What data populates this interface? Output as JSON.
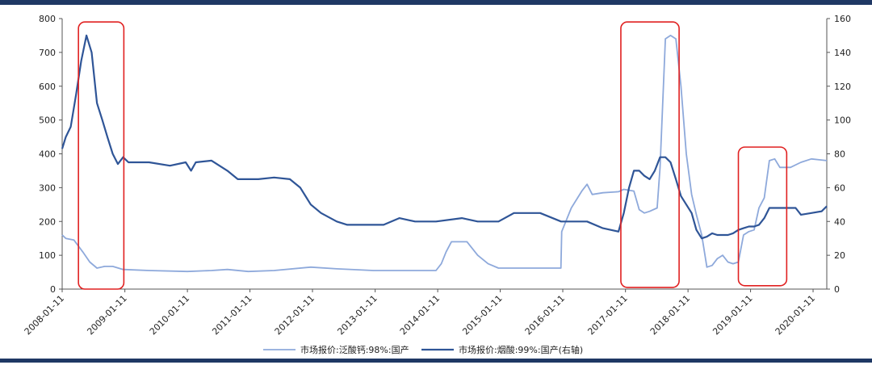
{
  "chart_data": {
    "type": "line",
    "title": "",
    "xlabel": "",
    "ylabel": "",
    "x_tick_labels": [
      "2008-01-11",
      "2009-01-11",
      "2010-01-11",
      "2011-01-11",
      "2012-01-11",
      "2013-01-11",
      "2014-01-11",
      "2015-01-11",
      "2016-01-11",
      "2017-01-11",
      "2018-01-11",
      "2019-01-11",
      "2020-01-11"
    ],
    "xlim": [
      "2008-01-11",
      "2020-03-31"
    ],
    "y_left": {
      "ticks": [
        "0",
        "100",
        "200",
        "300",
        "400",
        "500",
        "600",
        "700",
        "800"
      ],
      "ylim": [
        0,
        800
      ]
    },
    "y_right": {
      "ticks": [
        "0",
        "20",
        "40",
        "60",
        "80",
        "100",
        "120",
        "140",
        "160"
      ],
      "ylim": [
        0,
        160
      ]
    },
    "grid": false,
    "legend_position": "bottom",
    "colors": {
      "series_light": "#8ea9db",
      "series_dark": "#2f5597",
      "highlight_box": "#e02020",
      "rule": "#1f3864"
    },
    "highlight_ranges": [
      {
        "x": [
          "2008-04-15",
          "2009-01-05"
        ],
        "y_right": [
          0,
          158
        ]
      },
      {
        "x": [
          "2016-12-15",
          "2017-11-20"
        ],
        "y_right": [
          1,
          158
        ]
      },
      {
        "x": [
          "2018-11-01",
          "2019-08-10"
        ],
        "y_right": [
          2,
          84
        ]
      }
    ],
    "series": [
      {
        "name": "市场报价:泛酸钙:98%:国产",
        "axis": "left",
        "color": "#8ea9db",
        "points": [
          [
            "2008-01-11",
            160
          ],
          [
            "2008-02-01",
            150
          ],
          [
            "2008-03-20",
            145
          ],
          [
            "2008-05-10",
            110
          ],
          [
            "2008-06-20",
            80
          ],
          [
            "2008-08-01",
            62
          ],
          [
            "2008-09-15",
            67
          ],
          [
            "2008-11-01",
            67
          ],
          [
            "2009-01-01",
            58
          ],
          [
            "2009-06-01",
            55
          ],
          [
            "2010-01-11",
            52
          ],
          [
            "2010-06-01",
            55
          ],
          [
            "2010-09-01",
            58
          ],
          [
            "2011-01-01",
            52
          ],
          [
            "2011-06-01",
            55
          ],
          [
            "2012-01-01",
            65
          ],
          [
            "2012-06-01",
            60
          ],
          [
            "2013-01-01",
            55
          ],
          [
            "2013-06-01",
            55
          ],
          [
            "2014-01-01",
            55
          ],
          [
            "2014-02-01",
            75
          ],
          [
            "2014-03-01",
            110
          ],
          [
            "2014-04-01",
            140
          ],
          [
            "2014-07-01",
            140
          ],
          [
            "2014-09-01",
            100
          ],
          [
            "2014-11-01",
            75
          ],
          [
            "2015-01-01",
            62
          ],
          [
            "2015-06-01",
            62
          ],
          [
            "2015-12-31",
            62
          ],
          [
            "2016-01-05",
            170
          ],
          [
            "2016-03-01",
            240
          ],
          [
            "2016-05-01",
            290
          ],
          [
            "2016-06-01",
            310
          ],
          [
            "2016-07-01",
            280
          ],
          [
            "2016-09-01",
            285
          ],
          [
            "2016-12-01",
            288
          ],
          [
            "2017-01-01",
            295
          ],
          [
            "2017-03-01",
            290
          ],
          [
            "2017-04-01",
            235
          ],
          [
            "2017-05-01",
            225
          ],
          [
            "2017-06-01",
            230
          ],
          [
            "2017-07-15",
            240
          ],
          [
            "2017-08-01",
            360
          ],
          [
            "2017-09-01",
            740
          ],
          [
            "2017-10-01",
            750
          ],
          [
            "2017-11-01",
            740
          ],
          [
            "2017-12-01",
            600
          ],
          [
            "2018-01-01",
            400
          ],
          [
            "2018-02-01",
            280
          ],
          [
            "2018-03-01",
            220
          ],
          [
            "2018-04-01",
            160
          ],
          [
            "2018-05-01",
            65
          ],
          [
            "2018-06-01",
            70
          ],
          [
            "2018-07-01",
            90
          ],
          [
            "2018-08-01",
            100
          ],
          [
            "2018-09-01",
            80
          ],
          [
            "2018-10-01",
            75
          ],
          [
            "2018-11-01",
            80
          ],
          [
            "2018-12-01",
            160
          ],
          [
            "2019-01-01",
            170
          ],
          [
            "2019-02-01",
            175
          ],
          [
            "2019-03-01",
            240
          ],
          [
            "2019-04-01",
            270
          ],
          [
            "2019-05-01",
            380
          ],
          [
            "2019-06-01",
            385
          ],
          [
            "2019-07-01",
            360
          ],
          [
            "2019-09-01",
            360
          ],
          [
            "2019-11-01",
            375
          ],
          [
            "2020-01-01",
            385
          ],
          [
            "2020-03-31",
            380
          ]
        ]
      },
      {
        "name": "市场报价:烟酸:99%:国产(右轴)",
        "axis": "right",
        "color": "#2f5597",
        "points": [
          [
            "2008-01-11",
            83
          ],
          [
            "2008-02-01",
            90
          ],
          [
            "2008-03-01",
            96
          ],
          [
            "2008-04-01",
            115
          ],
          [
            "2008-05-01",
            135
          ],
          [
            "2008-06-01",
            150
          ],
          [
            "2008-07-01",
            140
          ],
          [
            "2008-08-01",
            110
          ],
          [
            "2008-09-01",
            100
          ],
          [
            "2008-10-01",
            90
          ],
          [
            "2008-11-01",
            80
          ],
          [
            "2008-12-01",
            74
          ],
          [
            "2009-01-01",
            78
          ],
          [
            "2009-02-01",
            75
          ],
          [
            "2009-06-01",
            75
          ],
          [
            "2009-10-01",
            73
          ],
          [
            "2010-01-01",
            75
          ],
          [
            "2010-02-01",
            70
          ],
          [
            "2010-03-01",
            75
          ],
          [
            "2010-06-01",
            76
          ],
          [
            "2010-09-01",
            70
          ],
          [
            "2010-11-01",
            65
          ],
          [
            "2011-03-01",
            65
          ],
          [
            "2011-06-01",
            66
          ],
          [
            "2011-09-01",
            65
          ],
          [
            "2011-11-01",
            60
          ],
          [
            "2012-01-01",
            50
          ],
          [
            "2012-03-01",
            45
          ],
          [
            "2012-06-01",
            40
          ],
          [
            "2012-08-01",
            38
          ],
          [
            "2013-03-01",
            38
          ],
          [
            "2013-06-01",
            42
          ],
          [
            "2013-09-01",
            40
          ],
          [
            "2014-01-01",
            40
          ],
          [
            "2014-06-01",
            42
          ],
          [
            "2014-09-01",
            40
          ],
          [
            "2015-01-01",
            40
          ],
          [
            "2015-04-01",
            45
          ],
          [
            "2015-09-01",
            45
          ],
          [
            "2016-01-01",
            40
          ],
          [
            "2016-06-01",
            40
          ],
          [
            "2016-09-01",
            36
          ],
          [
            "2016-12-01",
            34
          ],
          [
            "2017-01-01",
            45
          ],
          [
            "2017-02-01",
            60
          ],
          [
            "2017-03-01",
            70
          ],
          [
            "2017-04-01",
            70
          ],
          [
            "2017-05-01",
            67
          ],
          [
            "2017-06-01",
            65
          ],
          [
            "2017-07-01",
            70
          ],
          [
            "2017-08-01",
            78
          ],
          [
            "2017-09-01",
            78
          ],
          [
            "2017-10-01",
            75
          ],
          [
            "2017-11-01",
            65
          ],
          [
            "2017-12-01",
            55
          ],
          [
            "2018-01-01",
            50
          ],
          [
            "2018-02-01",
            45
          ],
          [
            "2018-03-01",
            35
          ],
          [
            "2018-04-01",
            30
          ],
          [
            "2018-05-01",
            31
          ],
          [
            "2018-06-01",
            33
          ],
          [
            "2018-07-01",
            32
          ],
          [
            "2018-09-01",
            32
          ],
          [
            "2018-10-01",
            33
          ],
          [
            "2018-11-01",
            35
          ],
          [
            "2018-12-01",
            36
          ],
          [
            "2019-01-01",
            37
          ],
          [
            "2019-02-01",
            37
          ],
          [
            "2019-03-01",
            38
          ],
          [
            "2019-04-01",
            42
          ],
          [
            "2019-05-01",
            48
          ],
          [
            "2019-07-01",
            48
          ],
          [
            "2019-10-01",
            48
          ],
          [
            "2019-11-01",
            44
          ],
          [
            "2020-01-01",
            45
          ],
          [
            "2020-03-01",
            46
          ],
          [
            "2020-03-31",
            49
          ]
        ]
      }
    ]
  }
}
